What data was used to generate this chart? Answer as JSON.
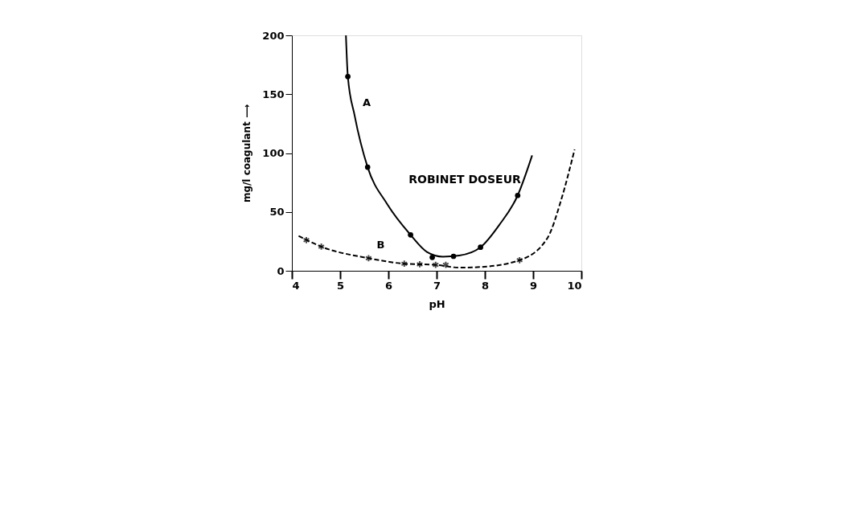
{
  "chart_data": {
    "type": "line",
    "xlabel": "pH",
    "ylabel": "mg/l  coagulant ⟶",
    "xlim": [
      4,
      10
    ],
    "xticks": [
      4,
      5,
      6,
      7,
      8,
      9,
      10
    ],
    "ylim": [
      0,
      200
    ],
    "yticks": [
      0,
      50,
      100,
      150,
      200
    ],
    "grid": false,
    "annotations": [
      "ROBINET DOSEUR"
    ],
    "series": [
      {
        "name": "A",
        "color": "#000000",
        "line_style": "solid",
        "marker": "none",
        "x": [
          5.12,
          5.16,
          5.3,
          5.57,
          5.97,
          6.46,
          6.8,
          7.13,
          7.47,
          7.91,
          8.3,
          8.68,
          8.98
        ],
        "values": [
          200,
          165,
          132,
          88,
          57,
          30.5,
          16,
          12,
          13,
          20,
          39,
          64,
          98
        ]
      },
      {
        "type": "scatter",
        "color": "#000000",
        "marker": "circle",
        "x": [
          5.16,
          5.57,
          6.46,
          6.91,
          7.35,
          7.91,
          8.68
        ],
        "values": [
          165,
          88,
          30.5,
          11.4,
          12.3,
          20,
          64
        ]
      },
      {
        "name": "B",
        "color": "#000000",
        "line_style": "dashed",
        "marker": "none",
        "x": [
          4.14,
          4.61,
          5.59,
          6.33,
          6.98,
          7.47,
          7.91,
          8.72,
          9.3,
          9.58,
          9.86
        ],
        "values": [
          29.6,
          20.5,
          10.7,
          6,
          5,
          2.7,
          3.2,
          9,
          28,
          60,
          103
        ]
      },
      {
        "type": "scatter",
        "color": "#000000",
        "marker": "cross",
        "x": [
          4.3,
          4.61,
          5.59,
          6.33,
          6.65,
          6.98,
          7.19,
          8.72
        ],
        "values": [
          26,
          20.5,
          10.7,
          6,
          5.5,
          5,
          5,
          9
        ]
      }
    ]
  }
}
